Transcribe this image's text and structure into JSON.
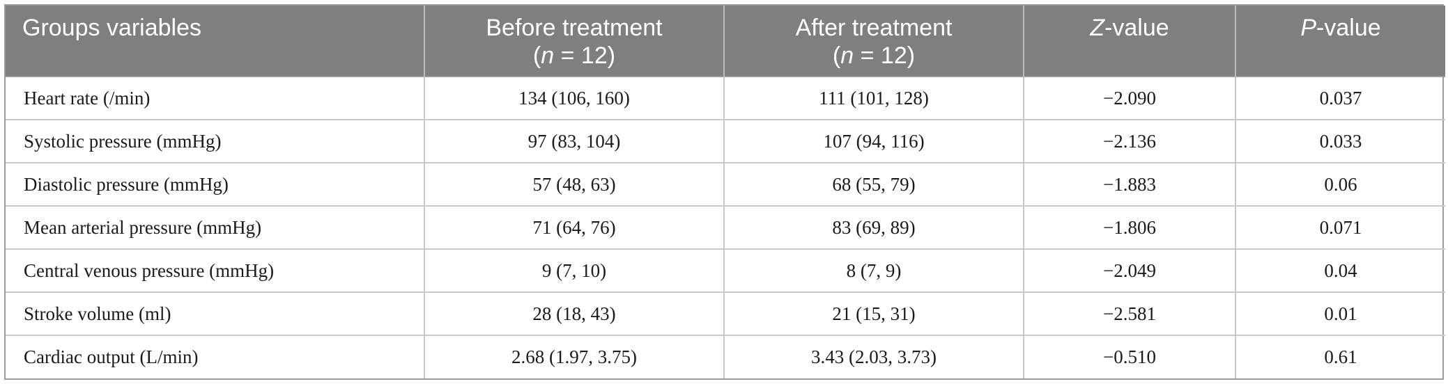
{
  "table": {
    "headers": {
      "col1": "Groups variables",
      "col2_line1": "Before treatment",
      "col2_n_open": "(",
      "col2_n_var": "n",
      "col2_n_rest": " = 12)",
      "col3_line1": "After treatment",
      "col3_n_open": "(",
      "col3_n_var": "n",
      "col3_n_rest": " = 12)",
      "col4_var": "Z",
      "col4_rest": "-value",
      "col5_var": "P",
      "col5_rest": "-value"
    },
    "rows": [
      {
        "variable": "Heart rate (/min)",
        "before": "134 (106, 160)",
        "after": "111 (101, 128)",
        "z": "−2.090",
        "p": "0.037"
      },
      {
        "variable": "Systolic pressure (mmHg)",
        "before": "97 (83, 104)",
        "after": "107 (94, 116)",
        "z": "−2.136",
        "p": "0.033"
      },
      {
        "variable": "Diastolic pressure (mmHg)",
        "before": "57 (48, 63)",
        "after": "68 (55, 79)",
        "z": "−1.883",
        "p": "0.06"
      },
      {
        "variable": "Mean arterial pressure (mmHg)",
        "before": "71 (64, 76)",
        "after": "83 (69, 89)",
        "z": "−1.806",
        "p": "0.071"
      },
      {
        "variable": "Central venous pressure (mmHg)",
        "before": "9 (7, 10)",
        "after": "8 (7, 9)",
        "z": "−2.049",
        "p": "0.04"
      },
      {
        "variable": "Stroke volume (ml)",
        "before": "28 (18, 43)",
        "after": "21 (15, 31)",
        "z": "−2.581",
        "p": "0.01"
      },
      {
        "variable": "Cardiac output (L/min)",
        "before": "2.68 (1.97, 3.75)",
        "after": "3.43 (2.03, 3.73)",
        "z": "−0.510",
        "p": "0.61"
      }
    ]
  }
}
